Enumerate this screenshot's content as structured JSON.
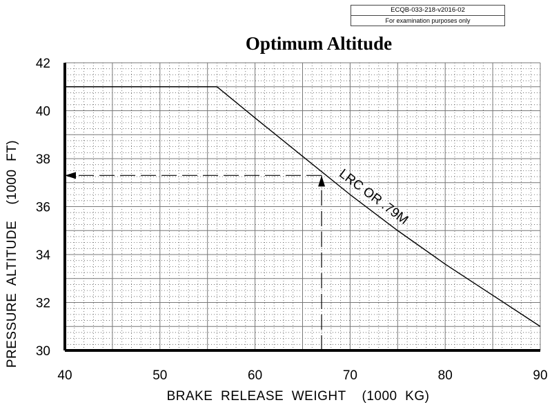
{
  "stamp": {
    "code": "ECQB-033-218-v2016-02",
    "note": "For examination purposes only"
  },
  "chart_data": {
    "type": "line",
    "title": "Optimum Altitude",
    "xlabel": "BRAKE  RELEASE  WEIGHT    (1000  KG)",
    "ylabel": "PRESSURE  ALTITUDE    (1000  FT)",
    "xlim": [
      40,
      90
    ],
    "ylim": [
      30,
      42
    ],
    "xticks": [
      "40",
      "50",
      "60",
      "70",
      "80",
      "90"
    ],
    "yticks": [
      "30",
      "32",
      "34",
      "36",
      "38",
      "40",
      "42"
    ],
    "grid": true,
    "series": [
      {
        "name": "LRC  OR  .79M",
        "x": [
          40,
          56,
          60,
          65,
          70,
          75,
          80,
          85,
          90
        ],
        "y": [
          41.0,
          41.0,
          39.7,
          38.1,
          36.5,
          35.0,
          33.6,
          32.3,
          31.0
        ]
      }
    ],
    "reference_lines": [
      {
        "from": [
          67.0,
          30.0
        ],
        "to": [
          67.0,
          37.3
        ],
        "style": "dashed",
        "arrow": "end"
      },
      {
        "from": [
          67.0,
          37.3
        ],
        "to": [
          40.0,
          37.3
        ],
        "style": "dashed",
        "arrow": "end"
      }
    ]
  }
}
